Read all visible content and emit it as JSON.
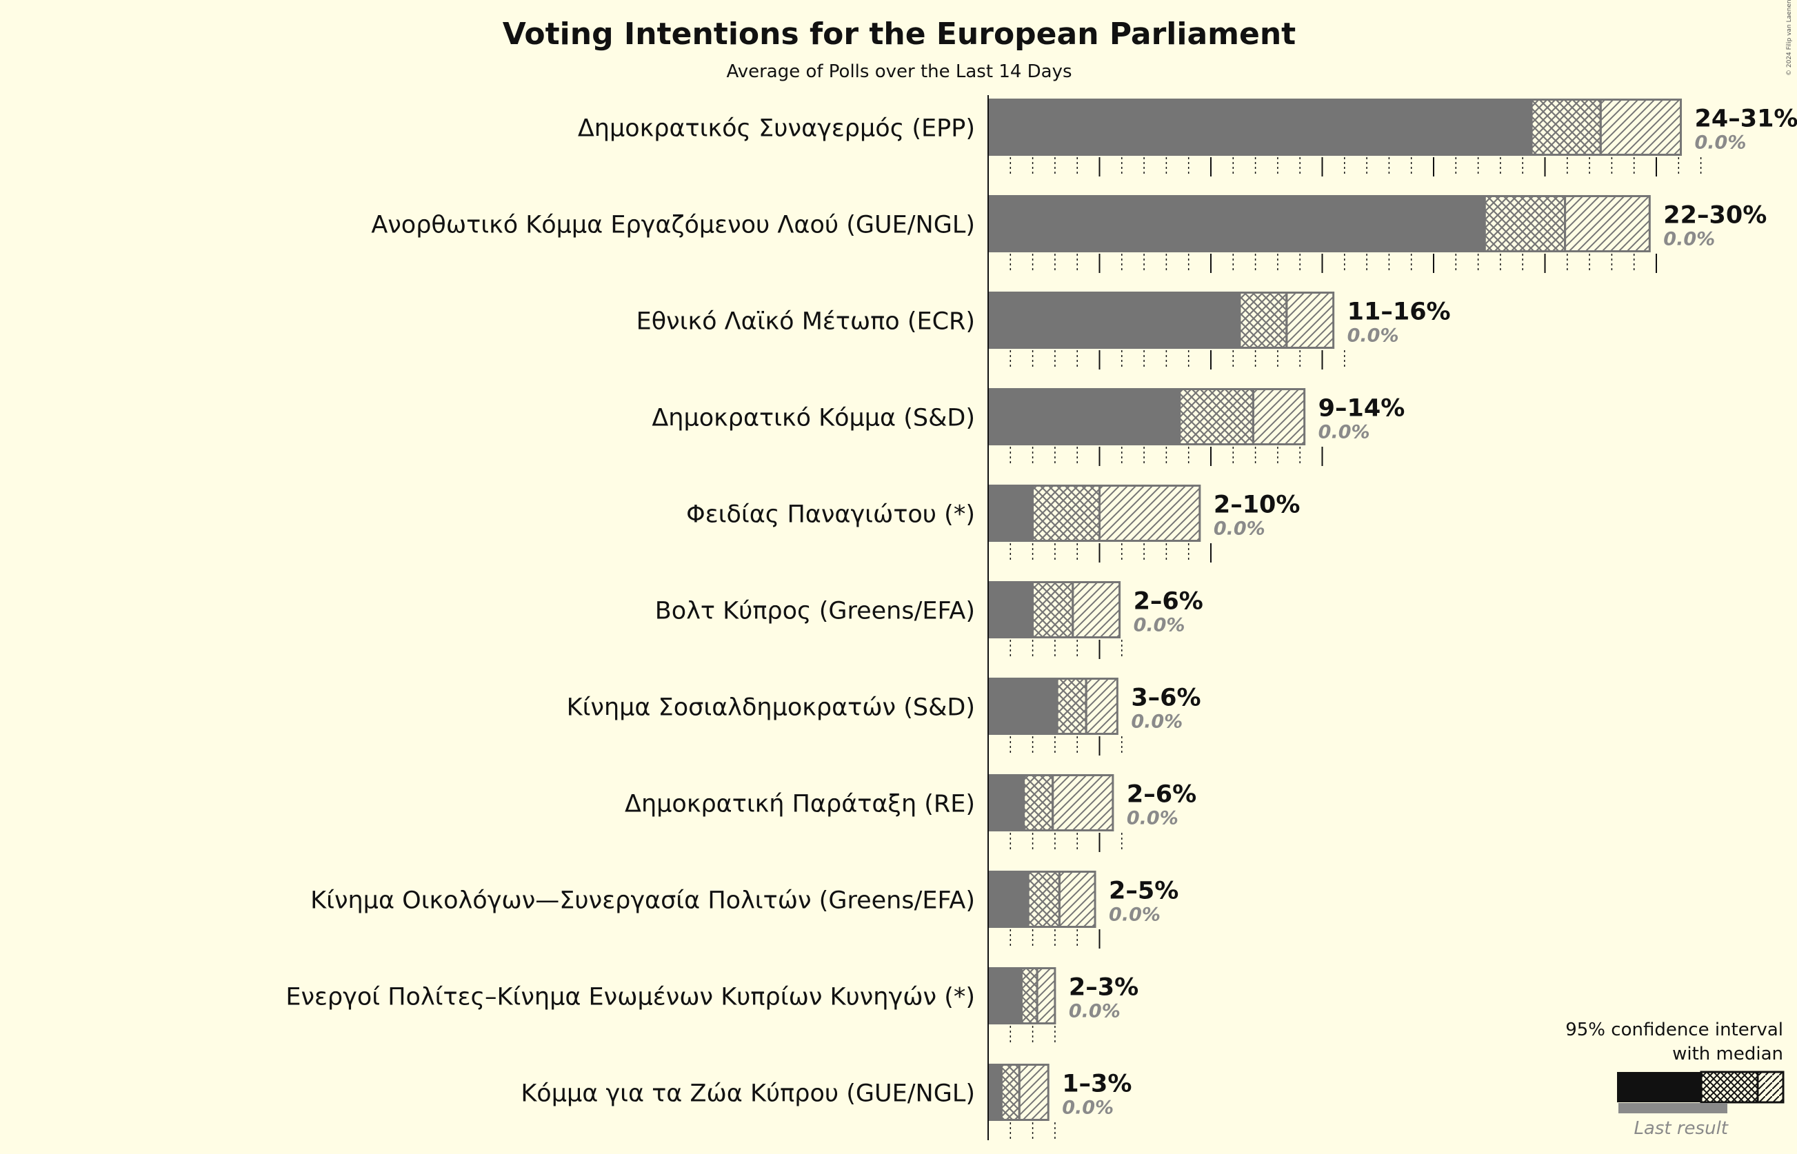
{
  "chart_data": {
    "type": "bar",
    "title": "Voting Intentions for the European Parliament",
    "subtitle": "Average of Polls over the Last 14 Days",
    "copyright": "© 2024 Filip van Laenen",
    "xlim": [
      0,
      31
    ],
    "gridlines": "dotted every 1%, solid every 5%",
    "legend": {
      "title_line1": "95% confidence interval",
      "title_line2": "with median",
      "last_result": "Last result",
      "placement": "bottom-right"
    },
    "series_encoding": {
      "solid": "lower end of 95% interval",
      "crosshatch": "lower bound to median",
      "diagonal": "median to upper end of 95% interval"
    },
    "parties": [
      {
        "name": "Δημοκρατικός Συναγερμός (EPP)",
        "low": 24.4,
        "median": 27.5,
        "high": 31.1,
        "range_label": "24–31%",
        "last_result": "0.0%",
        "last_value": 0
      },
      {
        "name": "Ανορθωτικό Κόμμα Εργαζόμενου Λαού (GUE/NGL)",
        "low": 22.3,
        "median": 25.9,
        "high": 29.7,
        "range_label": "22–30%",
        "last_result": "0.0%",
        "last_value": 0
      },
      {
        "name": "Εθνικό Λαϊκό Μέτωπο (ECR)",
        "low": 11.3,
        "median": 13.4,
        "high": 15.5,
        "range_label": "11–16%",
        "last_result": "0.0%",
        "last_value": 0
      },
      {
        "name": "Δημοκρατικό Κόμμα (S&D)",
        "low": 8.6,
        "median": 11.9,
        "high": 14.2,
        "range_label": "9–14%",
        "last_result": "0.0%",
        "last_value": 0
      },
      {
        "name": "Φειδίας Παναγιώτου (*)",
        "low": 2.0,
        "median": 5.0,
        "high": 9.5,
        "range_label": "2–10%",
        "last_result": "0.0%",
        "last_value": 0
      },
      {
        "name": "Βολτ Κύπρος (Greens/EFA)",
        "low": 2.0,
        "median": 3.8,
        "high": 5.9,
        "range_label": "2–6%",
        "last_result": "0.0%",
        "last_value": 0
      },
      {
        "name": "Κίνημα Σοσιαλδημοκρατών (S&D)",
        "low": 3.1,
        "median": 4.4,
        "high": 5.8,
        "range_label": "3–6%",
        "last_result": "0.0%",
        "last_value": 0
      },
      {
        "name": "Δημοκρατική Παράταξη (RE)",
        "low": 1.6,
        "median": 2.9,
        "high": 5.6,
        "range_label": "2–6%",
        "last_result": "0.0%",
        "last_value": 0
      },
      {
        "name": "Κίνημα Οικολόγων—Συνεργασία Πολιτών (Greens/EFA)",
        "low": 1.8,
        "median": 3.2,
        "high": 4.8,
        "range_label": "2–5%",
        "last_result": "0.0%",
        "last_value": 0
      },
      {
        "name": "Ενεργοί Πολίτες–Κίνημα Ενωμένων Κυπρίων Κυνηγών (*)",
        "low": 1.5,
        "median": 2.2,
        "high": 3.0,
        "range_label": "2–3%",
        "last_result": "0.0%",
        "last_value": 0
      },
      {
        "name": "Κόμμα για τα Ζώα Κύπρου (GUE/NGL)",
        "low": 0.6,
        "median": 1.4,
        "high": 2.7,
        "range_label": "1–3%",
        "last_result": "0.0%",
        "last_value": 0
      }
    ]
  },
  "colors": {
    "background": "#fffde5",
    "bar": "#757575",
    "bar_outline": "#757575",
    "axis": "#111111",
    "legend_bar": "#111111",
    "last_result": "#8a8a8a"
  }
}
